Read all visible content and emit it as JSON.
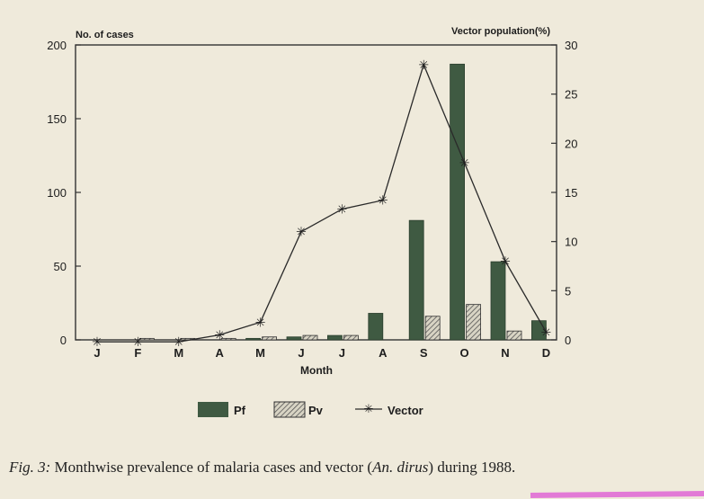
{
  "chart_data": {
    "type": "bar",
    "categories": [
      "J",
      "F",
      "M",
      "A",
      "M",
      "J",
      "J",
      "A",
      "S",
      "O",
      "N",
      "D"
    ],
    "xlabel": "Month",
    "ylabel_left": "No. of cases",
    "ylabel_right": "Vector population(%)",
    "ylim_left": [
      0,
      200
    ],
    "ylim_right": [
      0,
      30
    ],
    "yticks_left": [
      "0",
      "50",
      "100",
      "150",
      "200"
    ],
    "yticks_right": [
      "0",
      "5",
      "10",
      "15",
      "20",
      "25",
      "30"
    ],
    "series": [
      {
        "name": "Pf",
        "kind": "bar",
        "axis": "left",
        "values": [
          0,
          0,
          0,
          0,
          1,
          2,
          3,
          18,
          81,
          187,
          53,
          13
        ]
      },
      {
        "name": "Pv",
        "kind": "bar",
        "axis": "left",
        "values": [
          0,
          1,
          1,
          1,
          2,
          3,
          3,
          0,
          16,
          24,
          6,
          0
        ]
      },
      {
        "name": "Vector",
        "kind": "line",
        "axis": "right",
        "values": [
          -0.2,
          -0.2,
          -0.2,
          0.5,
          1.8,
          11,
          13.3,
          14.2,
          28,
          18,
          8,
          0.8
        ]
      }
    ],
    "legend": [
      "Pf",
      "Pv",
      "Vector"
    ],
    "legend_position": "bottom",
    "grid": false,
    "colors": {
      "pf": "#3f5a42",
      "pv_hatch": "#555555",
      "line": "#2a2a2a"
    }
  },
  "caption": {
    "lead": "Fig. 3:",
    "text_before": " Monthwise prevalence of malaria cases and vector (",
    "species": "An. dirus",
    "text_after": ") during 1988."
  }
}
